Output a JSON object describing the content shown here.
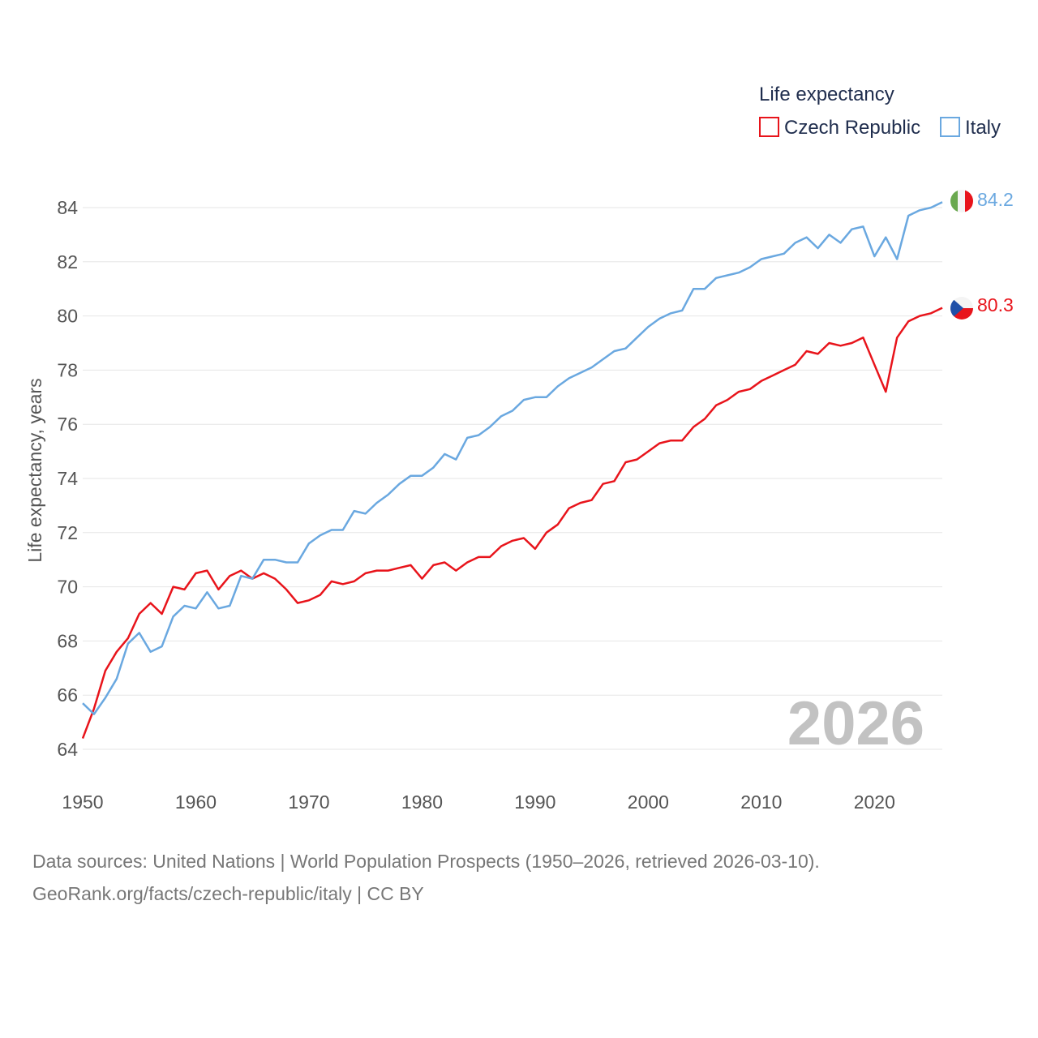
{
  "chart_data": {
    "type": "line",
    "title": "",
    "legend_title": "Life expectancy",
    "legend_position": "top-right",
    "xlabel": "",
    "ylabel": "Life expectancy, years",
    "xlim": [
      1950,
      2026
    ],
    "ylim": [
      64,
      84
    ],
    "x_ticks": [
      1950,
      1960,
      1970,
      1980,
      1990,
      2000,
      2010,
      2020
    ],
    "y_ticks": [
      64,
      66,
      68,
      70,
      72,
      74,
      76,
      78,
      80,
      82,
      84
    ],
    "grid": true,
    "watermark_year": "2026",
    "series": [
      {
        "name": "Czech Republic",
        "color": "#e8141b",
        "flag": "czech-flag-icon",
        "end_label": "80.3",
        "x": [
          1950,
          1951,
          1952,
          1953,
          1954,
          1955,
          1956,
          1957,
          1958,
          1959,
          1960,
          1961,
          1962,
          1963,
          1964,
          1965,
          1966,
          1967,
          1968,
          1969,
          1970,
          1971,
          1972,
          1973,
          1974,
          1975,
          1976,
          1977,
          1978,
          1979,
          1980,
          1981,
          1982,
          1983,
          1984,
          1985,
          1986,
          1987,
          1988,
          1989,
          1990,
          1991,
          1992,
          1993,
          1994,
          1995,
          1996,
          1997,
          1998,
          1999,
          2000,
          2001,
          2002,
          2003,
          2004,
          2005,
          2006,
          2007,
          2008,
          2009,
          2010,
          2011,
          2012,
          2013,
          2014,
          2015,
          2016,
          2017,
          2018,
          2019,
          2020,
          2021,
          2022,
          2023,
          2024,
          2025,
          2026
        ],
        "values": [
          64.4,
          65.5,
          66.9,
          67.6,
          68.1,
          69.0,
          69.4,
          69.0,
          70.0,
          69.9,
          70.5,
          70.6,
          69.9,
          70.4,
          70.6,
          70.3,
          70.5,
          70.3,
          69.9,
          69.4,
          69.5,
          69.7,
          70.2,
          70.1,
          70.2,
          70.5,
          70.6,
          70.6,
          70.7,
          70.8,
          70.3,
          70.8,
          70.9,
          70.6,
          70.9,
          71.1,
          71.1,
          71.5,
          71.7,
          71.8,
          71.4,
          72.0,
          72.3,
          72.9,
          73.1,
          73.2,
          73.8,
          73.9,
          74.6,
          74.7,
          75.0,
          75.3,
          75.4,
          75.4,
          75.9,
          76.2,
          76.7,
          76.9,
          77.2,
          77.3,
          77.6,
          77.8,
          78.0,
          78.2,
          78.7,
          78.6,
          79.0,
          78.9,
          79.0,
          79.2,
          78.2,
          77.2,
          79.2,
          79.8,
          80.0,
          80.1,
          80.3
        ]
      },
      {
        "name": "Italy",
        "color": "#6aa8e0",
        "flag": "italy-flag-icon",
        "end_label": "84.2",
        "x": [
          1950,
          1951,
          1952,
          1953,
          1954,
          1955,
          1956,
          1957,
          1958,
          1959,
          1960,
          1961,
          1962,
          1963,
          1964,
          1965,
          1966,
          1967,
          1968,
          1969,
          1970,
          1971,
          1972,
          1973,
          1974,
          1975,
          1976,
          1977,
          1978,
          1979,
          1980,
          1981,
          1982,
          1983,
          1984,
          1985,
          1986,
          1987,
          1988,
          1989,
          1990,
          1991,
          1992,
          1993,
          1994,
          1995,
          1996,
          1997,
          1998,
          1999,
          2000,
          2001,
          2002,
          2003,
          2004,
          2005,
          2006,
          2007,
          2008,
          2009,
          2010,
          2011,
          2012,
          2013,
          2014,
          2015,
          2016,
          2017,
          2018,
          2019,
          2020,
          2021,
          2022,
          2023,
          2024,
          2025,
          2026
        ],
        "values": [
          65.7,
          65.3,
          65.9,
          66.6,
          67.9,
          68.3,
          67.6,
          67.8,
          68.9,
          69.3,
          69.2,
          69.8,
          69.2,
          69.3,
          70.4,
          70.3,
          71.0,
          71.0,
          70.9,
          70.9,
          71.6,
          71.9,
          72.1,
          72.1,
          72.8,
          72.7,
          73.1,
          73.4,
          73.8,
          74.1,
          74.1,
          74.4,
          74.9,
          74.7,
          75.5,
          75.6,
          75.9,
          76.3,
          76.5,
          76.9,
          77.0,
          77.0,
          77.4,
          77.7,
          77.9,
          78.1,
          78.4,
          78.7,
          78.8,
          79.2,
          79.6,
          79.9,
          80.1,
          80.2,
          81.0,
          81.0,
          81.4,
          81.5,
          81.6,
          81.8,
          82.1,
          82.2,
          82.3,
          82.7,
          82.9,
          82.5,
          83.0,
          82.7,
          83.2,
          83.3,
          82.2,
          82.9,
          82.1,
          83.7,
          83.9,
          84.0,
          84.2
        ]
      }
    ]
  },
  "footer": {
    "sources": "Data sources: United Nations | World Population Prospects (1950–2026, retrieved 2026-03-10).",
    "credit": "GeoRank.org/facts/czech-republic/italy | CC BY"
  }
}
